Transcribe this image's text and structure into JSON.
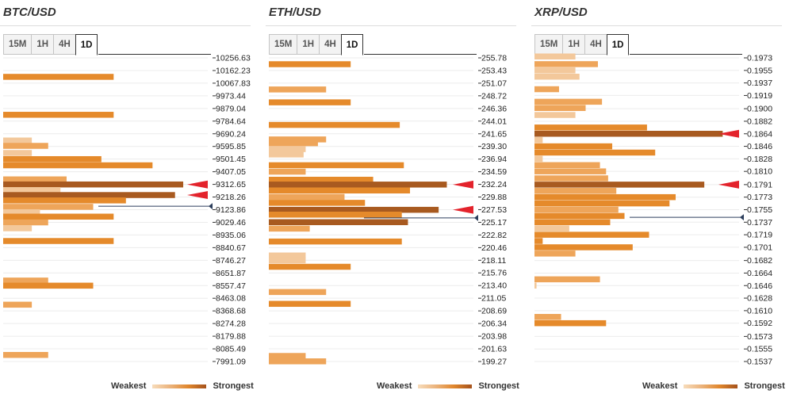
{
  "legend": {
    "weakest": "Weakest",
    "strongest": "Strongest"
  },
  "colors": {
    "weak": "#f3c89b",
    "mid": "#eea55a",
    "strong": "#e58a2b",
    "strongest": "#a85a20",
    "arrow": "#e3232c",
    "price_line": "#2c3e5c"
  },
  "panels": [
    {
      "title": "BTC/USD",
      "tabs": [
        "15M",
        "1H",
        "4H",
        "1D"
      ],
      "active_tab": "1D",
      "chart_data": {
        "type": "bar",
        "orientation": "horizontal",
        "title": "BTC/USD",
        "levels": [
          "10256.63",
          "10162.23",
          "10067.83",
          "9973.44",
          "9879.04",
          "9784.64",
          "9690.24",
          "9595.85",
          "9501.45",
          "9407.05",
          "9312.65",
          "9218.26",
          "9123.86",
          "9029.46",
          "8935.06",
          "8840.67",
          "8746.27",
          "8651.87",
          "8557.47",
          "8463.08",
          "8368.68",
          "8274.28",
          "8179.88",
          "8085.49",
          "7991.09"
        ],
        "bars": [
          {
            "y": 10209,
            "v": 0,
            "c": "strong"
          },
          {
            "y": 10115,
            "v": 0.54,
            "c": "strong"
          },
          {
            "y": 9832,
            "v": 0.54,
            "c": "strong"
          },
          {
            "y": 9640,
            "v": 0.14,
            "c": "weak"
          },
          {
            "y": 9600,
            "v": 0.22,
            "c": "mid"
          },
          {
            "y": 9547,
            "v": 0.14,
            "c": "weak"
          },
          {
            "y": 9501,
            "v": 0.48,
            "c": "strong"
          },
          {
            "y": 9455,
            "v": 0.73,
            "c": "strong"
          },
          {
            "y": 9350,
            "v": 0.31,
            "c": "mid"
          },
          {
            "y": 9312,
            "v": 0.88,
            "c": "strongest"
          },
          {
            "y": 9270,
            "v": 0.28,
            "c": "weak"
          },
          {
            "y": 9233,
            "v": 0.84,
            "c": "strongest"
          },
          {
            "y": 9193,
            "v": 0.6,
            "c": "strong"
          },
          {
            "y": 9145,
            "v": 0.44,
            "c": "mid"
          },
          {
            "y": 9105,
            "v": 0.18,
            "c": "weak"
          },
          {
            "y": 9072,
            "v": 0.54,
            "c": "strong"
          },
          {
            "y": 9029,
            "v": 0.22,
            "c": "mid"
          },
          {
            "y": 8985,
            "v": 0.14,
            "c": "weak"
          },
          {
            "y": 8890,
            "v": 0.54,
            "c": "strong"
          },
          {
            "y": 8595,
            "v": 0.22,
            "c": "mid"
          },
          {
            "y": 8557,
            "v": 0.44,
            "c": "strong"
          },
          {
            "y": 8415,
            "v": 0.14,
            "c": "mid"
          },
          {
            "y": 8040,
            "v": 0.22,
            "c": "mid"
          }
        ],
        "current_price": 9150,
        "arrows": [
          9312,
          9233
        ]
      }
    },
    {
      "title": "ETH/USD",
      "tabs": [
        "15M",
        "1H",
        "4H",
        "1D"
      ],
      "active_tab": "1D",
      "chart_data": {
        "type": "bar",
        "orientation": "horizontal",
        "title": "ETH/USD",
        "levels": [
          "255.78",
          "253.43",
          "251.07",
          "248.72",
          "246.36",
          "244.01",
          "241.65",
          "239.30",
          "236.94",
          "234.59",
          "232.24",
          "229.88",
          "227.53",
          "225.17",
          "222.82",
          "220.46",
          "218.11",
          "215.76",
          "213.40",
          "211.05",
          "208.69",
          "206.34",
          "203.98",
          "201.63",
          "199.27"
        ],
        "bars": [
          {
            "y": 254.6,
            "v": 0.4,
            "c": "strong"
          },
          {
            "y": 249.9,
            "v": 0.28,
            "c": "mid"
          },
          {
            "y": 247.5,
            "v": 0.4,
            "c": "strong"
          },
          {
            "y": 243.3,
            "v": 0.64,
            "c": "strong"
          },
          {
            "y": 240.6,
            "v": 0.28,
            "c": "mid"
          },
          {
            "y": 239.9,
            "v": 0.24,
            "c": "mid"
          },
          {
            "y": 238.8,
            "v": 0.18,
            "c": "weak"
          },
          {
            "y": 237.8,
            "v": 0.17,
            "c": "weak"
          },
          {
            "y": 235.8,
            "v": 0.66,
            "c": "strong"
          },
          {
            "y": 234.6,
            "v": 0.18,
            "c": "mid"
          },
          {
            "y": 233.1,
            "v": 0.51,
            "c": "strong"
          },
          {
            "y": 232.2,
            "v": 0.87,
            "c": "strongest"
          },
          {
            "y": 231.1,
            "v": 0.69,
            "c": "strong"
          },
          {
            "y": 229.9,
            "v": 0.37,
            "c": "mid"
          },
          {
            "y": 228.8,
            "v": 0.47,
            "c": "strong"
          },
          {
            "y": 227.5,
            "v": 0.83,
            "c": "strongest"
          },
          {
            "y": 226.6,
            "v": 0.65,
            "c": "strong"
          },
          {
            "y": 225.2,
            "v": 0.68,
            "c": "strongest"
          },
          {
            "y": 224.0,
            "v": 0.2,
            "c": "mid"
          },
          {
            "y": 221.6,
            "v": 0.65,
            "c": "strong"
          },
          {
            "y": 219.0,
            "v": 0.18,
            "c": "weak"
          },
          {
            "y": 218.1,
            "v": 0.18,
            "c": "weak"
          },
          {
            "y": 216.9,
            "v": 0.4,
            "c": "strong"
          },
          {
            "y": 212.2,
            "v": 0.28,
            "c": "mid"
          },
          {
            "y": 210.0,
            "v": 0.4,
            "c": "strong"
          },
          {
            "y": 200.3,
            "v": 0.18,
            "c": "mid"
          },
          {
            "y": 199.3,
            "v": 0.28,
            "c": "mid"
          }
        ],
        "current_price": 226.0,
        "arrows": [
          232.2,
          227.5
        ]
      }
    },
    {
      "title": "XRP/USD",
      "tabs": [
        "15M",
        "1H",
        "4H",
        "1D"
      ],
      "active_tab": "1D",
      "chart_data": {
        "type": "bar",
        "orientation": "horizontal",
        "title": "XRP/USD",
        "levels": [
          "0.1973",
          "0.1955",
          "0.1937",
          "0.1919",
          "0.1900",
          "0.1882",
          "0.1864",
          "0.1846",
          "0.1828",
          "0.1810",
          "0.1791",
          "0.1773",
          "0.1755",
          "0.1737",
          "0.1719",
          "0.1701",
          "0.1682",
          "0.1664",
          "0.1646",
          "0.1628",
          "0.1610",
          "0.1592",
          "0.1573",
          "0.1555",
          "0.1537"
        ],
        "bars": [
          {
            "y": 0.1975,
            "v": 0.2,
            "c": "weak"
          },
          {
            "y": 0.1964,
            "v": 0.31,
            "c": "mid"
          },
          {
            "y": 0.1955,
            "v": 0.2,
            "c": "weak"
          },
          {
            "y": 0.1946,
            "v": 0.22,
            "c": "weak"
          },
          {
            "y": 0.1928,
            "v": 0.12,
            "c": "mid"
          },
          {
            "y": 0.191,
            "v": 0.33,
            "c": "mid"
          },
          {
            "y": 0.1901,
            "v": 0.25,
            "c": "mid"
          },
          {
            "y": 0.1891,
            "v": 0.2,
            "c": "weak"
          },
          {
            "y": 0.1873,
            "v": 0.55,
            "c": "strong"
          },
          {
            "y": 0.1864,
            "v": 0.92,
            "c": "strongest"
          },
          {
            "y": 0.1855,
            "v": 0.04,
            "c": "weak"
          },
          {
            "y": 0.1846,
            "v": 0.38,
            "c": "strong"
          },
          {
            "y": 0.1837,
            "v": 0.59,
            "c": "strong"
          },
          {
            "y": 0.1828,
            "v": 0.04,
            "c": "weak"
          },
          {
            "y": 0.1819,
            "v": 0.32,
            "c": "mid"
          },
          {
            "y": 0.181,
            "v": 0.35,
            "c": "mid"
          },
          {
            "y": 0.18,
            "v": 0.36,
            "c": "mid"
          },
          {
            "y": 0.1791,
            "v": 0.83,
            "c": "strongest"
          },
          {
            "y": 0.1782,
            "v": 0.4,
            "c": "mid"
          },
          {
            "y": 0.1773,
            "v": 0.69,
            "c": "strong"
          },
          {
            "y": 0.1764,
            "v": 0.66,
            "c": "strong"
          },
          {
            "y": 0.1755,
            "v": 0.41,
            "c": "mid"
          },
          {
            "y": 0.1746,
            "v": 0.44,
            "c": "strong"
          },
          {
            "y": 0.1737,
            "v": 0.37,
            "c": "strong"
          },
          {
            "y": 0.1728,
            "v": 0.17,
            "c": "weak"
          },
          {
            "y": 0.1719,
            "v": 0.56,
            "c": "strong"
          },
          {
            "y": 0.171,
            "v": 0.04,
            "c": "strong"
          },
          {
            "y": 0.1701,
            "v": 0.48,
            "c": "strong"
          },
          {
            "y": 0.1692,
            "v": 0.2,
            "c": "mid"
          },
          {
            "y": 0.1655,
            "v": 0.32,
            "c": "mid"
          },
          {
            "y": 0.1646,
            "v": 0.01,
            "c": "weak"
          },
          {
            "y": 0.1601,
            "v": 0.13,
            "c": "mid"
          },
          {
            "y": 0.1592,
            "v": 0.35,
            "c": "strong"
          }
        ],
        "current_price": 0.1744,
        "arrows": [
          0.1864,
          0.1791
        ]
      }
    }
  ]
}
